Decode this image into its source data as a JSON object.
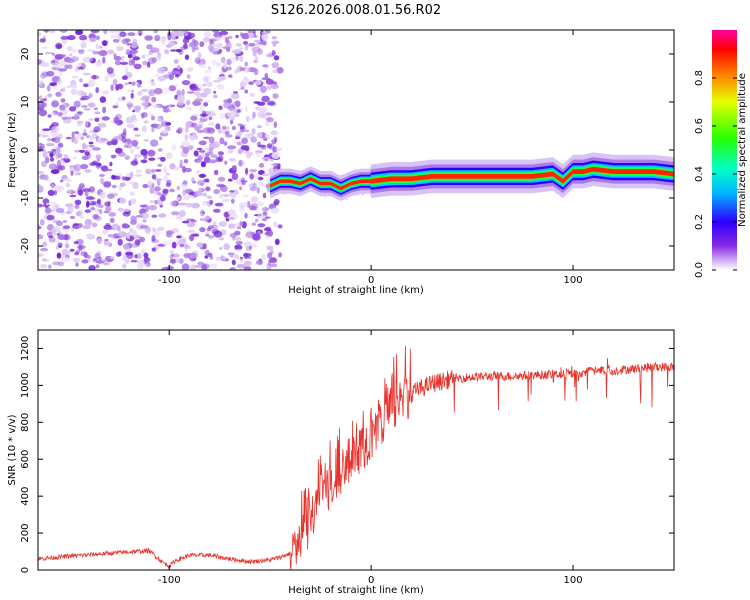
{
  "title": "S126.2026.008.01.56.R02",
  "chart_data": [
    {
      "type": "heatmap",
      "name": "spectrogram",
      "xlabel": "Height of straight line (km)",
      "ylabel": "Frequency (Hz)",
      "xlim": [
        -165,
        150
      ],
      "ylim": [
        -25,
        25
      ],
      "xticks": [
        -100,
        0,
        100
      ],
      "yticks": [
        -20,
        -10,
        0,
        10,
        20
      ],
      "noise_region_end_km": -48,
      "signal_track": {
        "x": [
          -50,
          -45,
          -40,
          -35,
          -30,
          -25,
          -20,
          -15,
          -10,
          -5,
          0,
          10,
          20,
          30,
          40,
          60,
          80,
          90,
          95,
          100,
          105,
          110,
          120,
          130,
          140,
          150
        ],
        "freq": [
          -7.5,
          -6.5,
          -6.5,
          -7.0,
          -6.0,
          -7.0,
          -7.0,
          -8.0,
          -7.0,
          -6.5,
          -6.5,
          -6.0,
          -6.0,
          -5.5,
          -5.5,
          -5.5,
          -5.5,
          -5.0,
          -6.5,
          -4.5,
          -4.5,
          -4.0,
          -4.5,
          -4.5,
          -4.5,
          -5.0
        ]
      },
      "colorbar": {
        "label": "Normalized spectral amplitude",
        "range": [
          0.0,
          1.0
        ],
        "ticks": [
          0.0,
          0.2,
          0.4,
          0.6,
          0.8
        ],
        "tick_labels": [
          "0.0",
          "0.2",
          "0.4",
          "0.6",
          "0.8"
        ]
      }
    },
    {
      "type": "line",
      "name": "snr",
      "xlabel": "Height of straight line (km)",
      "ylabel": "SNR (10 * v/v)",
      "xlim": [
        -165,
        150
      ],
      "ylim": [
        0,
        1300
      ],
      "xticks": [
        -100,
        0,
        100
      ],
      "yticks": [
        0,
        200,
        400,
        600,
        800,
        1000,
        1200
      ],
      "color": "#e8332d",
      "series": [
        {
          "name": "SNR",
          "x": [
            -165,
            -150,
            -130,
            -110,
            -103,
            -100,
            -97,
            -90,
            -80,
            -70,
            -60,
            -50,
            -45,
            -40,
            -35,
            -30,
            -25,
            -20,
            -15,
            -10,
            -5,
            0,
            5,
            10,
            15,
            20,
            30,
            40,
            50,
            60,
            70,
            80,
            90,
            100,
            110,
            120,
            130,
            140,
            150
          ],
          "y": [
            60,
            75,
            90,
            105,
            40,
            20,
            50,
            80,
            80,
            60,
            45,
            55,
            70,
            90,
            160,
            260,
            360,
            450,
            530,
            600,
            660,
            720,
            790,
            870,
            930,
            960,
            1010,
            1035,
            1045,
            1050,
            1050,
            1055,
            1060,
            1060,
            1080,
            1080,
            1090,
            1100,
            1100
          ]
        }
      ]
    }
  ]
}
